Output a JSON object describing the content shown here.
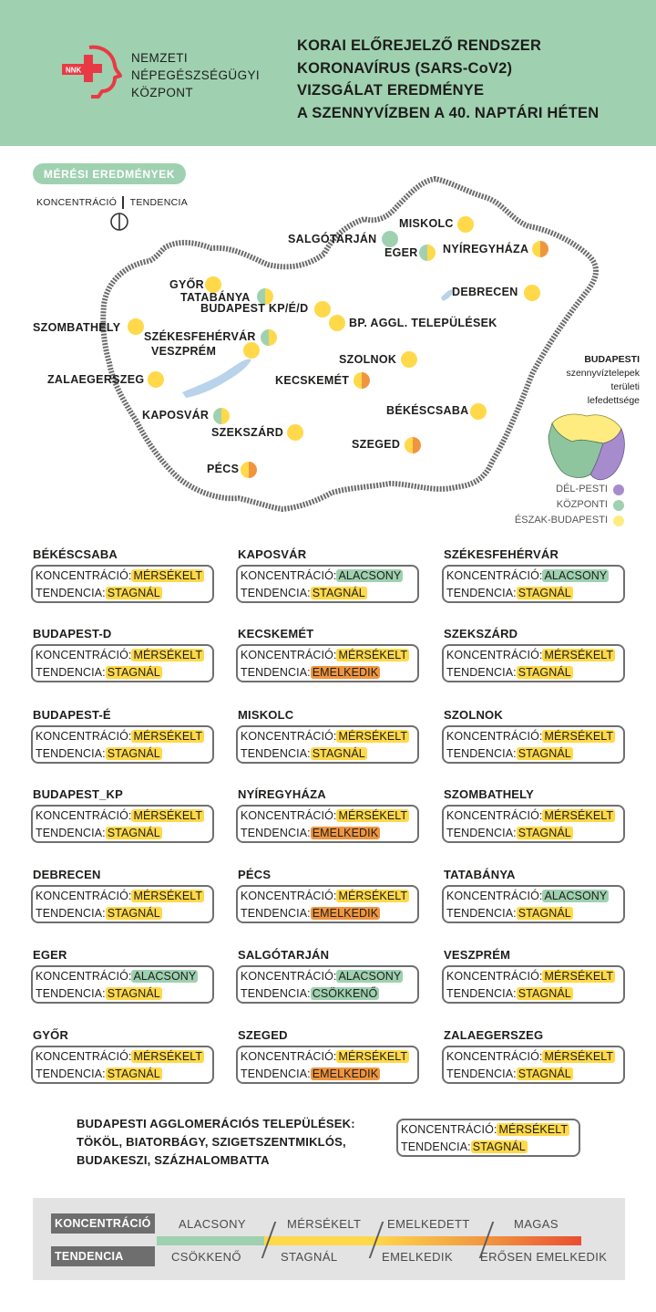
{
  "colors": {
    "header_bg": "#9fd1b0",
    "low": "#9fd1b0",
    "moderate": "#ffd94a",
    "elevated": "#f0953f",
    "high": "#e94e32",
    "map_border": "#6b6b6b",
    "water": "#b8d3ea"
  },
  "header": {
    "org_lines": [
      "NEMZETI",
      "NÉPEGÉSZSÉGÜGYI",
      "KÖZPONT"
    ],
    "logo_text": "NNK",
    "title_lines": [
      "KORAI ELŐREJELZŐ RENDSZER",
      "KORONAVÍRUS (SARS-CoV2)",
      "VIZSGÁLAT EREDMÉNYE",
      "A SZENNYVÍZBEN A 40. NAPTÁRI HÉTEN"
    ]
  },
  "map": {
    "results_label": "MÉRÉSI EREDMÉNYEK",
    "key_concentration": "KONCENTRÁCIÓ",
    "key_tendency": "TENDENCIA",
    "cities": [
      {
        "name": "MISKOLC",
        "c": "moderate",
        "t": "stagnal"
      },
      {
        "name": "SALGÓTARJÁN",
        "c": "low",
        "t": "decreasing"
      },
      {
        "name": "EGER",
        "c": "low",
        "t": "stagnal"
      },
      {
        "name": "NYÍREGYHÁZA",
        "c": "moderate",
        "t": "increasing"
      },
      {
        "name": "GYŐR",
        "c": "moderate",
        "t": "stagnal"
      },
      {
        "name": "TATABÁNYA",
        "c": "low",
        "t": "stagnal"
      },
      {
        "name": "BUDAPEST KP/É/D",
        "c": "moderate",
        "t": "stagnal"
      },
      {
        "name": "BP. AGGL. TELEPÜLÉSEK",
        "c": "moderate",
        "t": "stagnal"
      },
      {
        "name": "DEBRECEN",
        "c": "moderate",
        "t": "stagnal"
      },
      {
        "name": "SZOMBATHELY",
        "c": "moderate",
        "t": "stagnal"
      },
      {
        "name": "SZÉKESFEHÉRVÁR",
        "c": "low",
        "t": "stagnal"
      },
      {
        "name": "VESZPRÉM",
        "c": "moderate",
        "t": "stagnal"
      },
      {
        "name": "SZOLNOK",
        "c": "moderate",
        "t": "stagnal"
      },
      {
        "name": "ZALAEGERSZEG",
        "c": "moderate",
        "t": "stagnal"
      },
      {
        "name": "KECSKEMÉT",
        "c": "moderate",
        "t": "increasing"
      },
      {
        "name": "BÉKÉSCSABA",
        "c": "moderate",
        "t": "stagnal"
      },
      {
        "name": "KAPOSVÁR",
        "c": "low",
        "t": "stagnal"
      },
      {
        "name": "SZEKSZÁRD",
        "c": "moderate",
        "t": "stagnal"
      },
      {
        "name": "SZEGED",
        "c": "moderate",
        "t": "increasing"
      },
      {
        "name": "PÉCS",
        "c": "moderate",
        "t": "increasing"
      }
    ],
    "inset": {
      "title_lines": [
        "BUDAPESTI",
        "szennyvíztelepek",
        "területi",
        "lefedettsége"
      ],
      "legend": [
        {
          "label": "DÉL-PESTI",
          "color": "#a68ccc"
        },
        {
          "label": "KÖZPONTI",
          "color": "#9fd1b0"
        },
        {
          "label": "ÉSZAK-BUDAPESTI",
          "color": "#ffec80"
        }
      ]
    }
  },
  "labels": {
    "concentration": "KONCENTRÁCIÓ:",
    "tendency": "TENDENCIA:"
  },
  "cards": [
    {
      "name": "BÉKÉSCSABA",
      "c": "MÉRSÉKELT",
      "cc": "y",
      "t": "STAGNÁL",
      "tc": "y"
    },
    {
      "name": "KAPOSVÁR",
      "c": "ALACSONY",
      "cc": "g",
      "t": "STAGNÁL",
      "tc": "y"
    },
    {
      "name": "SZÉKESFEHÉRVÁR",
      "c": "ALACSONY",
      "cc": "g",
      "t": "STAGNÁL",
      "tc": "y"
    },
    {
      "name": "BUDAPEST-D",
      "c": "MÉRSÉKELT",
      "cc": "y",
      "t": "STAGNÁL",
      "tc": "y"
    },
    {
      "name": "KECSKEMÉT",
      "c": "MÉRSÉKELT",
      "cc": "y",
      "t": "EMELKEDIK",
      "tc": "o"
    },
    {
      "name": "SZEKSZÁRD",
      "c": "MÉRSÉKELT",
      "cc": "y",
      "t": "STAGNÁL",
      "tc": "y"
    },
    {
      "name": "BUDAPEST-É",
      "c": "MÉRSÉKELT",
      "cc": "y",
      "t": "STAGNÁL",
      "tc": "y"
    },
    {
      "name": "MISKOLC",
      "c": "MÉRSÉKELT",
      "cc": "y",
      "t": "STAGNÁL",
      "tc": "y"
    },
    {
      "name": "SZOLNOK",
      "c": "MÉRSÉKELT",
      "cc": "y",
      "t": "STAGNÁL",
      "tc": "y"
    },
    {
      "name": "BUDAPEST_KP",
      "c": "MÉRSÉKELT",
      "cc": "y",
      "t": "STAGNÁL",
      "tc": "y"
    },
    {
      "name": "NYÍREGYHÁZA",
      "c": "MÉRSÉKELT",
      "cc": "y",
      "t": "EMELKEDIK",
      "tc": "o"
    },
    {
      "name": "SZOMBATHELY",
      "c": "MÉRSÉKELT",
      "cc": "y",
      "t": "STAGNÁL",
      "tc": "y"
    },
    {
      "name": "DEBRECEN",
      "c": "MÉRSÉKELT",
      "cc": "y",
      "t": "STAGNÁL",
      "tc": "y"
    },
    {
      "name": "PÉCS",
      "c": "MÉRSÉKELT",
      "cc": "y",
      "t": "EMELKEDIK",
      "tc": "o"
    },
    {
      "name": "TATABÁNYA",
      "c": "ALACSONY",
      "cc": "g",
      "t": "STAGNÁL",
      "tc": "y"
    },
    {
      "name": "EGER",
      "c": "ALACSONY",
      "cc": "g",
      "t": "STAGNÁL",
      "tc": "y"
    },
    {
      "name": "SALGÓTARJÁN",
      "c": "ALACSONY",
      "cc": "g",
      "t": "CSÖKKENŐ",
      "tc": "g"
    },
    {
      "name": "VESZPRÉM",
      "c": "MÉRSÉKELT",
      "cc": "y",
      "t": "STAGNÁL",
      "tc": "y"
    },
    {
      "name": "GYŐR",
      "c": "MÉRSÉKELT",
      "cc": "y",
      "t": "STAGNÁL",
      "tc": "y"
    },
    {
      "name": "SZEGED",
      "c": "MÉRSÉKELT",
      "cc": "y",
      "t": "EMELKEDIK",
      "tc": "o"
    },
    {
      "name": "ZALAEGERSZEG",
      "c": "MÉRSÉKELT",
      "cc": "y",
      "t": "STAGNÁL",
      "tc": "y"
    }
  ],
  "agglomeration": {
    "lines": [
      "BUDAPESTI AGGLOMERÁCIÓS TELEPÜLÉSEK:",
      "TÖKÖL, BIATORBÁGY, SZIGETSZENTMIKLÓS,",
      "BUDAKESZI, SZÁZHALOMBATTA"
    ],
    "c": "MÉRSÉKELT",
    "cc": "y",
    "t": "STAGNÁL",
    "tc": "y"
  },
  "scale": {
    "concentration_label": "KONCENTRÁCIÓ",
    "tendency_label": "TENDENCIA",
    "concentration_levels": [
      "ALACSONY",
      "MÉRSÉKELT",
      "EMELKEDETT",
      "MAGAS"
    ],
    "tendency_levels": [
      "CSÖKKENŐ",
      "STAGNÁL",
      "EMELKEDIK",
      "ERŐSEN EMELKEDIK"
    ]
  }
}
